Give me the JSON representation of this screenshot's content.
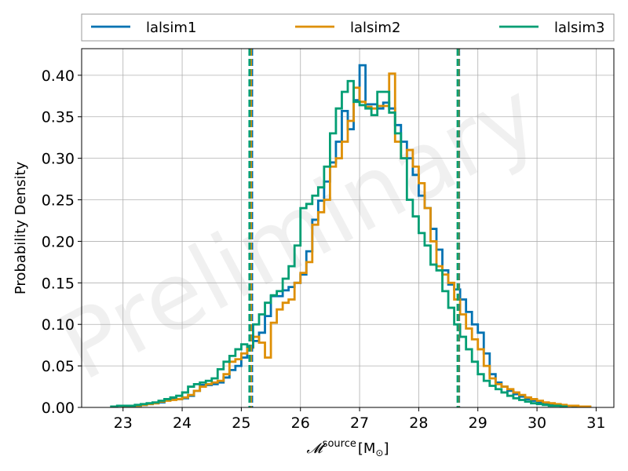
{
  "chart_data": {
    "type": "histogram",
    "watermark": "Preliminary",
    "xlabel": "𝓜^source [M⊙]",
    "xlabel_parts": {
      "main": "𝓜",
      "sup": "source",
      "unit": "[M",
      "unit_sub": "⊙",
      "unit_close": "]"
    },
    "ylabel": "Probability Density",
    "xlim": [
      22.3,
      31.3
    ],
    "ylim": [
      0.0,
      0.432
    ],
    "xticks": [
      23,
      24,
      25,
      26,
      27,
      28,
      29,
      30,
      31
    ],
    "xtick_labels": [
      "23",
      "24",
      "25",
      "26",
      "27",
      "28",
      "29",
      "30",
      "31"
    ],
    "yticks": [
      0.0,
      0.05,
      0.1,
      0.15,
      0.2,
      0.25,
      0.3,
      0.35,
      0.4
    ],
    "ytick_labels": [
      "0.00",
      "0.05",
      "0.10",
      "0.15",
      "0.20",
      "0.25",
      "0.30",
      "0.35",
      "0.40"
    ],
    "grid": true,
    "legend_position": "top, above plot, horizontal",
    "bin_width": 0.1,
    "series": [
      {
        "name": "lalsim1",
        "color": "#0072b2",
        "x_start": 23.0,
        "values": [
          0.002,
          0.002,
          0.002,
          0.003,
          0.004,
          0.005,
          0.006,
          0.009,
          0.01,
          0.01,
          0.011,
          0.014,
          0.02,
          0.027,
          0.027,
          0.028,
          0.03,
          0.036,
          0.045,
          0.05,
          0.06,
          0.072,
          0.08,
          0.09,
          0.11,
          0.134,
          0.134,
          0.141,
          0.145,
          0.15,
          0.16,
          0.188,
          0.226,
          0.249,
          0.272,
          0.295,
          0.32,
          0.357,
          0.335,
          0.37,
          0.412,
          0.365,
          0.365,
          0.36,
          0.367,
          0.36,
          0.34,
          0.32,
          0.3,
          0.28,
          0.255,
          0.24,
          0.215,
          0.19,
          0.165,
          0.148,
          0.142,
          0.13,
          0.115,
          0.1,
          0.09,
          0.065,
          0.04,
          0.03,
          0.025,
          0.02,
          0.016,
          0.013,
          0.01,
          0.008,
          0.006,
          0.005,
          0.004,
          0.003,
          0.002,
          0.002,
          0.001,
          0.001,
          0.001
        ],
        "ci": [
          25.18,
          28.68
        ]
      },
      {
        "name": "lalsim2",
        "color": "#de8f05",
        "x_start": 23.0,
        "values": [
          0.002,
          0.002,
          0.002,
          0.003,
          0.004,
          0.005,
          0.007,
          0.008,
          0.009,
          0.01,
          0.012,
          0.015,
          0.02,
          0.025,
          0.028,
          0.03,
          0.032,
          0.04,
          0.055,
          0.058,
          0.065,
          0.072,
          0.085,
          0.078,
          0.06,
          0.102,
          0.118,
          0.126,
          0.13,
          0.15,
          0.162,
          0.175,
          0.22,
          0.235,
          0.25,
          0.29,
          0.3,
          0.32,
          0.345,
          0.385,
          0.368,
          0.362,
          0.36,
          0.363,
          0.363,
          0.402,
          0.32,
          0.3,
          0.31,
          0.29,
          0.27,
          0.24,
          0.2,
          0.17,
          0.16,
          0.15,
          0.13,
          0.112,
          0.095,
          0.082,
          0.07,
          0.05,
          0.035,
          0.028,
          0.025,
          0.022,
          0.018,
          0.015,
          0.012,
          0.01,
          0.008,
          0.006,
          0.005,
          0.004,
          0.003,
          0.002,
          0.002,
          0.001,
          0.001
        ],
        "ci": [
          25.16,
          28.67
        ]
      },
      {
        "name": "lalsim3",
        "color": "#029e73",
        "x_start": 22.8,
        "values": [
          0.001,
          0.002,
          0.002,
          0.002,
          0.003,
          0.004,
          0.005,
          0.006,
          0.008,
          0.01,
          0.012,
          0.014,
          0.018,
          0.025,
          0.028,
          0.03,
          0.032,
          0.035,
          0.046,
          0.055,
          0.062,
          0.07,
          0.076,
          0.073,
          0.1,
          0.112,
          0.126,
          0.135,
          0.14,
          0.155,
          0.17,
          0.195,
          0.24,
          0.245,
          0.255,
          0.265,
          0.29,
          0.33,
          0.36,
          0.38,
          0.393,
          0.368,
          0.364,
          0.36,
          0.352,
          0.38,
          0.38,
          0.355,
          0.33,
          0.3,
          0.25,
          0.23,
          0.21,
          0.195,
          0.172,
          0.165,
          0.14,
          0.12,
          0.1,
          0.085,
          0.07,
          0.055,
          0.04,
          0.032,
          0.026,
          0.022,
          0.018,
          0.014,
          0.011,
          0.009,
          0.007,
          0.005,
          0.004,
          0.003,
          0.002,
          0.002,
          0.001
        ],
        "ci": [
          25.14,
          28.66
        ]
      }
    ]
  }
}
